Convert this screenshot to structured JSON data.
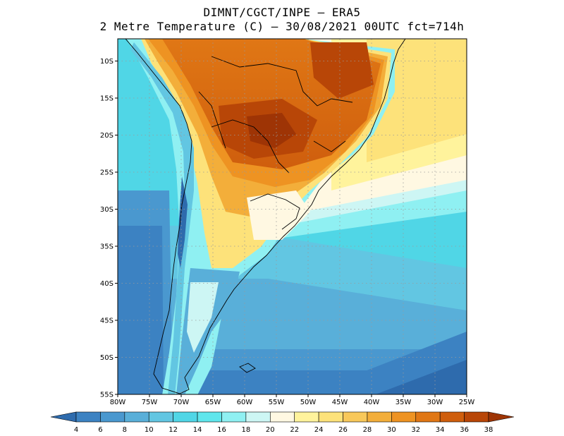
{
  "title_line1": "DIMNT/CGCT/INPE –  ERA5",
  "title_line2": "2 Metre Temperature (C) –  30/08/2021 00UTC fct=714h",
  "map": {
    "variable": "2 Metre Temperature",
    "units": "C",
    "lat_range": [
      -55,
      -7
    ],
    "lon_range": [
      -80,
      -25
    ],
    "lat_ticks": [
      "10S",
      "15S",
      "20S",
      "25S",
      "30S",
      "35S",
      "40S",
      "45S",
      "50S",
      "55S"
    ],
    "lon_ticks": [
      "80W",
      "75W",
      "70W",
      "65W",
      "60W",
      "55W",
      "50W",
      "45W",
      "40W",
      "35W",
      "30W",
      "25W"
    ],
    "grid": "dotted"
  },
  "colorbar": {
    "labels": [
      "4",
      "6",
      "8",
      "10",
      "12",
      "14",
      "16",
      "18",
      "20",
      "22",
      "24",
      "26",
      "28",
      "30",
      "32",
      "34",
      "36",
      "38"
    ],
    "colors": [
      "#2e6bad",
      "#3c82c2",
      "#4a98cf",
      "#59afd9",
      "#62c6e2",
      "#50d6e6",
      "#5fe6ec",
      "#8ff0f2",
      "#cdf6f4",
      "#fff8e2",
      "#fff39c",
      "#fde27a",
      "#f8c85a",
      "#f3ae3a",
      "#ee9322",
      "#e07715",
      "#cf5e0d",
      "#b84607",
      "#9e3405"
    ]
  }
}
